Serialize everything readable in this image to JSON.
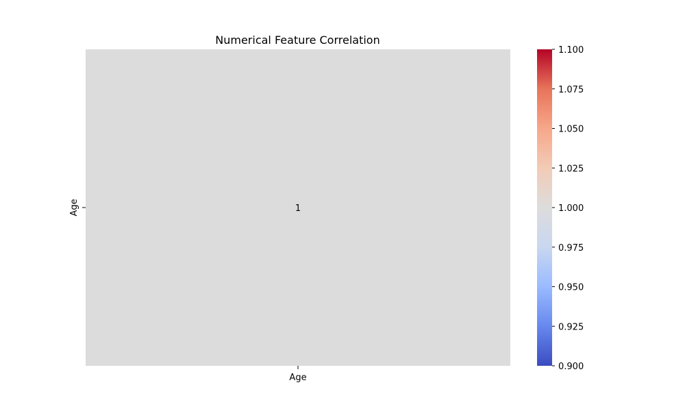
{
  "chart_data": {
    "type": "heatmap",
    "title": "Numerical Feature Correlation",
    "x_categories": [
      "Age"
    ],
    "y_categories": [
      "Age"
    ],
    "values": [
      [
        1
      ]
    ],
    "cell_labels": [
      [
        "1"
      ]
    ],
    "colorbar": {
      "cmap": "coolwarm",
      "min": 0.9,
      "max": 1.1,
      "ticks": [
        "0.900",
        "0.925",
        "0.950",
        "0.975",
        "1.000",
        "1.025",
        "1.050",
        "1.075",
        "1.100"
      ],
      "tick_values": [
        0.9,
        0.925,
        0.95,
        0.975,
        1.0,
        1.025,
        1.05,
        1.075,
        1.1
      ],
      "stops": [
        "#3b4cc0",
        "#6788ee",
        "#9abbff",
        "#c9d7f0",
        "#dddcdc",
        "#f2cbb7",
        "#f7a789",
        "#e7745b",
        "#b40426"
      ]
    },
    "cell_color": "#dddcdc",
    "grid": false
  }
}
